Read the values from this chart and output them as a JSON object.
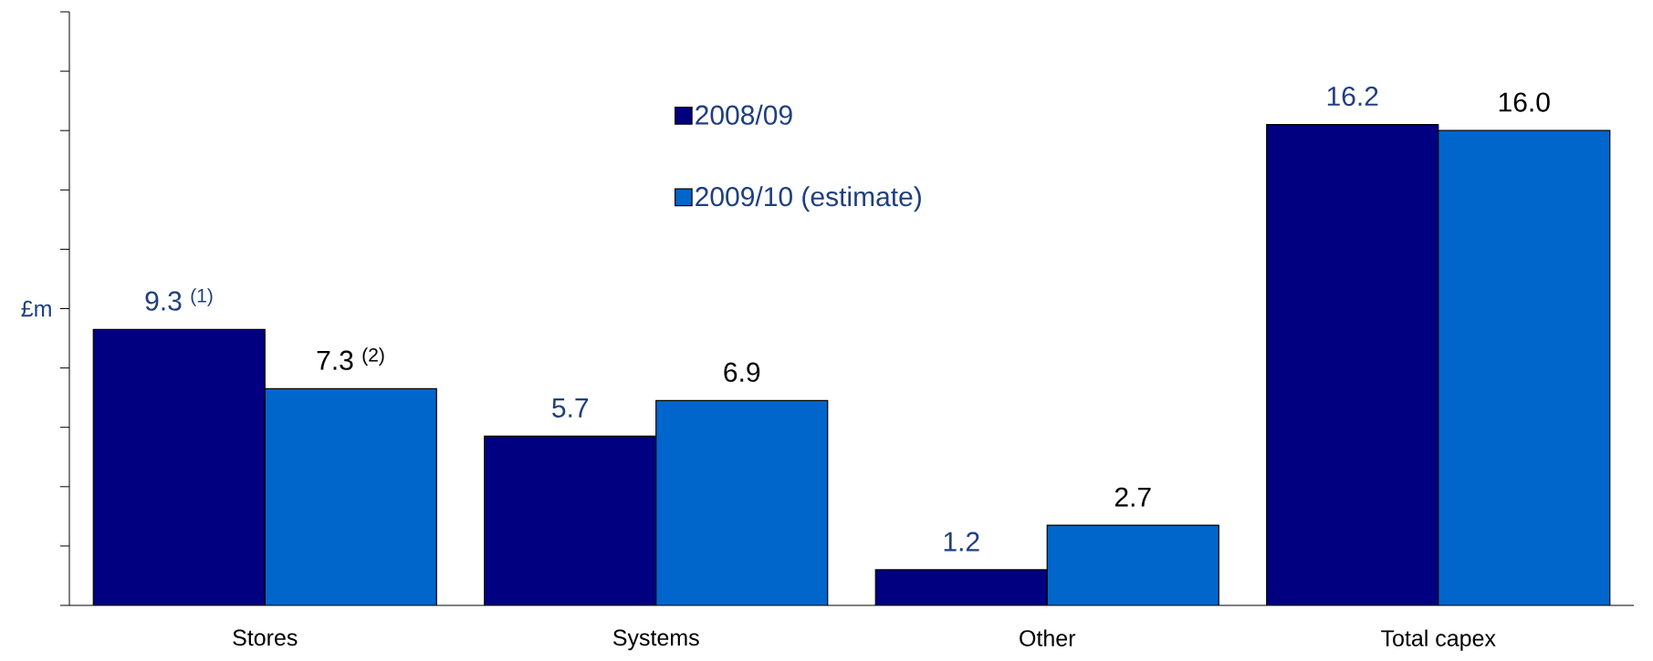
{
  "chart_data": {
    "type": "bar",
    "ylabel": "£m",
    "categories": [
      "Stores",
      "Systems",
      "Other",
      "Total capex"
    ],
    "series": [
      {
        "name": "2008/09",
        "color": "#000080",
        "values": [
          9.3,
          5.7,
          1.2,
          16.2
        ],
        "value_labels": [
          "9.3 $^{(1)}$",
          "5.7",
          "1.2",
          "16.2"
        ]
      },
      {
        "name": "2009/10 (estimate)",
        "color": "#0066cc",
        "values": [
          7.3,
          6.9,
          2.7,
          16.0
        ],
        "value_labels": [
          "7.3 $^{(2)}$",
          "6.9",
          "2.7",
          "16.0"
        ]
      }
    ],
    "ylim": [
      0,
      20
    ],
    "yticks": [
      {
        "value": 0,
        "label": null
      },
      {
        "value": 2,
        "label": null
      },
      {
        "value": 4,
        "label": null
      },
      {
        "value": 6,
        "label": null
      },
      {
        "value": 8,
        "label": null
      },
      {
        "value": 10,
        "label": null
      },
      {
        "value": 12,
        "label": null
      },
      {
        "value": 14,
        "label": null
      },
      {
        "value": 16,
        "label": null
      },
      {
        "value": 18,
        "label": null
      },
      {
        "value": 20,
        "label": null
      }
    ],
    "tick_labels": "x",
    "legend": "top",
    "grid": false
  }
}
